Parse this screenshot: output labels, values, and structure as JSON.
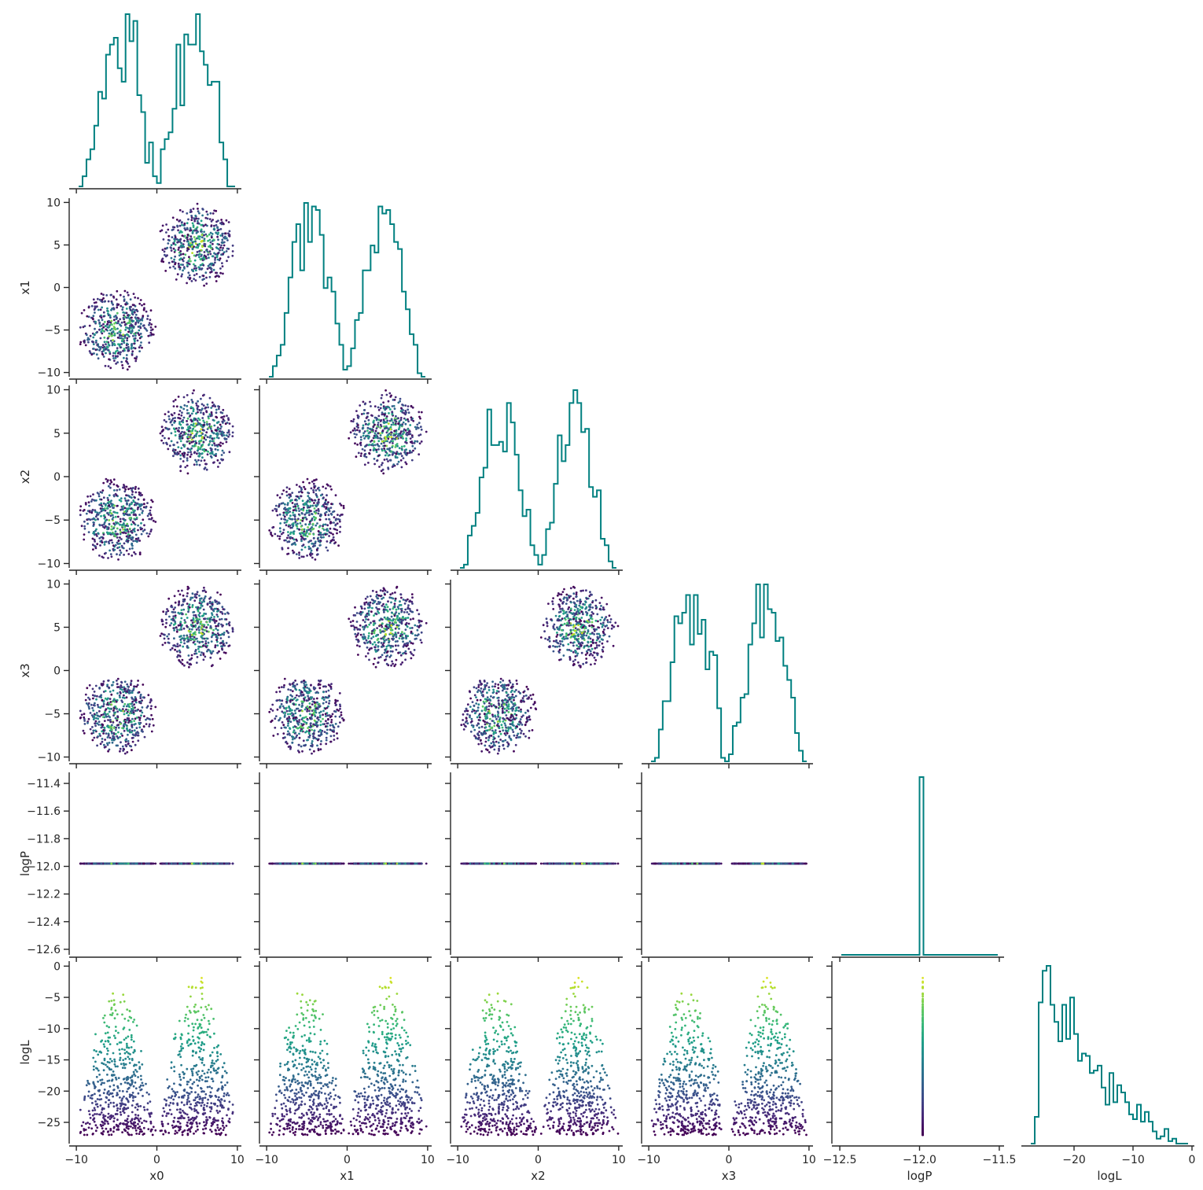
{
  "chart_data": {
    "type": "corner",
    "parameters": [
      {
        "name": "x0",
        "label": "x0",
        "range": [
          -10.5,
          10.5
        ],
        "ticks": [
          -10,
          0,
          10
        ],
        "tick_labels": [
          "−10",
          "0",
          "10"
        ]
      },
      {
        "name": "x1",
        "label": "x1",
        "range": [
          -10.5,
          10.5
        ],
        "ticks": [
          -10,
          -5,
          0,
          5,
          10
        ],
        "tick_labels": [
          "−10",
          "−5",
          "0",
          "5",
          "10"
        ],
        "x_ticks": [
          -10,
          0,
          10
        ],
        "x_tick_labels": [
          "−10",
          "0",
          "10"
        ]
      },
      {
        "name": "x2",
        "label": "x2",
        "range": [
          -10.5,
          10.5
        ],
        "ticks": [
          -10,
          -5,
          0,
          5,
          10
        ],
        "tick_labels": [
          "−10",
          "−5",
          "0",
          "5",
          "10"
        ],
        "x_ticks": [
          -10,
          0,
          10
        ],
        "x_tick_labels": [
          "−10",
          "0",
          "10"
        ]
      },
      {
        "name": "x3",
        "label": "x3",
        "range": [
          -10.5,
          10.5
        ],
        "ticks": [
          -10,
          -5,
          0,
          5,
          10
        ],
        "tick_labels": [
          "−10",
          "−5",
          "0",
          "5",
          "10"
        ],
        "x_ticks": [
          -10,
          0,
          10
        ],
        "x_tick_labels": [
          "−10",
          "0",
          "10"
        ]
      },
      {
        "name": "logP",
        "label": "logP",
        "range": [
          -12.64,
          -11.32
        ],
        "ticks": [
          -12.6,
          -12.4,
          -12.2,
          -12.0,
          -11.8,
          -11.6,
          -11.4
        ],
        "tick_labels": [
          "−12.6",
          "−12.4",
          "−12.2",
          "−12.0",
          "−11.8",
          "−11.6",
          "−11.4"
        ],
        "x_range": [
          -12.53,
          -11.47
        ],
        "x_ticks": [
          -12.5,
          -12.0,
          -11.5
        ],
        "x_tick_labels": [
          "−12.5",
          "−12.0",
          "−11.5"
        ]
      },
      {
        "name": "logL",
        "label": "logL",
        "range": [
          -28.4,
          0.8
        ],
        "ticks": [
          -25,
          -20,
          -15,
          -10,
          -5,
          0
        ],
        "tick_labels": [
          "−25",
          "−20",
          "−15",
          "−10",
          "−5",
          "0"
        ],
        "x_range": [
          -28.4,
          0.4
        ],
        "x_ticks": [
          -20,
          -10,
          0
        ],
        "x_tick_labels": [
          "−20",
          "−10",
          "0"
        ]
      }
    ],
    "samples": {
      "distribution": "mixture of two uniform 4-D balls",
      "count": 1000,
      "centers": [
        [
          -5,
          -5,
          -5,
          -5
        ],
        [
          5,
          5,
          5,
          5
        ]
      ],
      "radius": 5,
      "logP_value": -11.98,
      "logL_range": [
        -27,
        -0.5
      ],
      "color_by": "logL",
      "colormap": "viridis"
    },
    "histogram": {
      "color": "#008080",
      "bins": 40,
      "style": "step"
    },
    "grid": false,
    "legend": "none"
  }
}
